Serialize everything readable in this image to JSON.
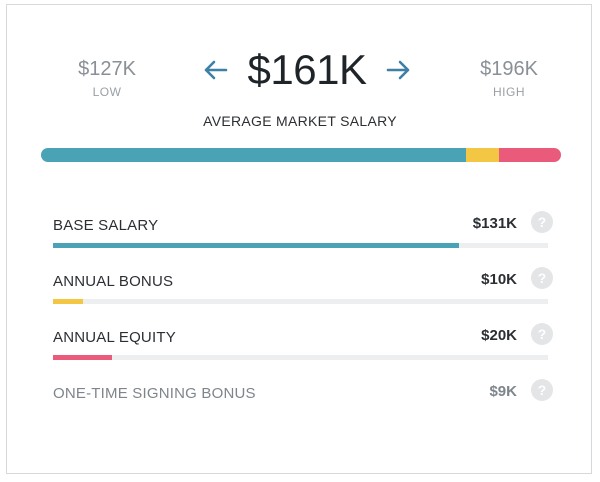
{
  "range": {
    "low_value": "$127K",
    "low_label": "LOW",
    "high_value": "$196K",
    "high_label": "HIGH"
  },
  "average": {
    "value": "$161K",
    "label": "AVERAGE MARKET SALARY"
  },
  "colors": {
    "base": "#4aa3b5",
    "bonus": "#f3c744",
    "equity": "#ea5a7b",
    "arrow": "#3e7fa6"
  },
  "components": [
    {
      "name": "BASE SALARY",
      "value": "$131K",
      "fill_fraction": 0.82,
      "color": "#4aa3b5"
    },
    {
      "name": "ANNUAL BONUS",
      "value": "$10K",
      "fill_fraction": 0.06,
      "color": "#f3c744"
    },
    {
      "name": "ANNUAL EQUITY",
      "value": "$20K",
      "fill_fraction": 0.12,
      "color": "#ea5a7b"
    },
    {
      "name": "ONE-TIME SIGNING BONUS",
      "value": "$9K"
    }
  ],
  "stack_bar": [
    {
      "name": "base",
      "fraction": 0.818,
      "color": "#4aa3b5"
    },
    {
      "name": "bonus",
      "fraction": 0.062,
      "color": "#f3c744"
    },
    {
      "name": "equity",
      "fraction": 0.12,
      "color": "#ea5a7b"
    }
  ],
  "help_icon_glyph": "?"
}
